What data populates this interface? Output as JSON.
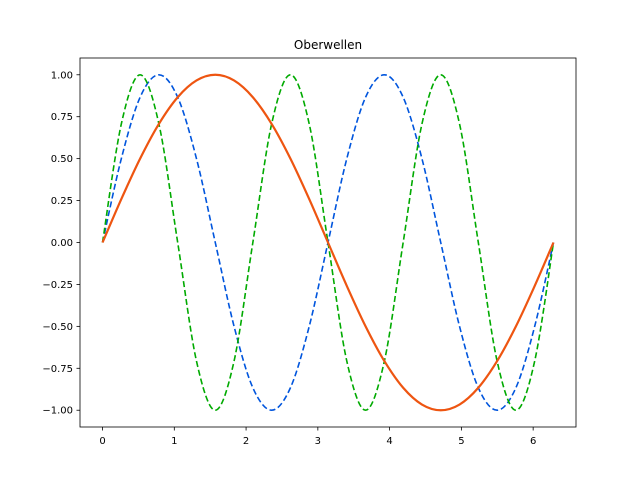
{
  "chart_data": {
    "type": "line",
    "title": "Oberwellen",
    "xlabel": "",
    "ylabel": "",
    "xlim": [
      -0.314,
      6.597
    ],
    "ylim": [
      -1.1,
      1.1
    ],
    "grid": false,
    "x_ticks": [
      {
        "value": 0,
        "label": "0"
      },
      {
        "value": 1,
        "label": "1"
      },
      {
        "value": 2,
        "label": "2"
      },
      {
        "value": 3,
        "label": "3"
      },
      {
        "value": 4,
        "label": "4"
      },
      {
        "value": 5,
        "label": "5"
      },
      {
        "value": 6,
        "label": "6"
      }
    ],
    "y_ticks": [
      {
        "value": -1.0,
        "label": "−1.00"
      },
      {
        "value": -0.75,
        "label": "−0.75"
      },
      {
        "value": -0.5,
        "label": "−0.50"
      },
      {
        "value": -0.25,
        "label": "−0.25"
      },
      {
        "value": 0.0,
        "label": "0.00"
      },
      {
        "value": 0.25,
        "label": "0.25"
      },
      {
        "value": 0.5,
        "label": "0.50"
      },
      {
        "value": 0.75,
        "label": "0.75"
      },
      {
        "value": 1.0,
        "label": "1.00"
      }
    ],
    "series": [
      {
        "color": "#0055dd",
        "line_style": "dashed",
        "x": [
          0,
          0.2618,
          0.5236,
          0.7854,
          1.0472,
          1.309,
          1.5708,
          1.8326,
          2.0944,
          2.3562,
          2.618,
          2.8798,
          3.1416,
          3.4034,
          3.6652,
          3.927,
          4.1888,
          4.4506,
          4.7124,
          4.9742,
          5.236,
          5.4978,
          5.7596,
          6.0214,
          6.2832
        ],
        "y": [
          0,
          0.5,
          0.866,
          1.0,
          0.866,
          0.5,
          0,
          -0.5,
          -0.866,
          -1.0,
          -0.866,
          -0.5,
          0,
          0.5,
          0.866,
          1.0,
          0.866,
          0.5,
          0,
          -0.5,
          -0.866,
          -1.0,
          -0.866,
          -0.5,
          0
        ]
      },
      {
        "color": "#00aa00",
        "line_style": "dashed",
        "x": [
          0,
          0.2618,
          0.5236,
          0.7854,
          1.0472,
          1.309,
          1.5708,
          1.8326,
          2.0944,
          2.3562,
          2.618,
          2.8798,
          3.1416,
          3.4034,
          3.6652,
          3.927,
          4.1888,
          4.4506,
          4.7124,
          4.9742,
          5.236,
          5.4978,
          5.7596,
          6.0214,
          6.2832
        ],
        "y": [
          0,
          0.7071,
          1.0,
          0.7071,
          0,
          -0.7071,
          -1.0,
          -0.7071,
          0,
          0.7071,
          1.0,
          0.7071,
          0,
          -0.7071,
          -1.0,
          -0.7071,
          0,
          0.7071,
          1.0,
          0.7071,
          0,
          -0.7071,
          -1.0,
          -0.7071,
          0
        ]
      },
      {
        "color": "#ee5511",
        "line_style": "solid",
        "x": [
          0,
          0.2618,
          0.5236,
          0.7854,
          1.0472,
          1.309,
          1.5708,
          1.8326,
          2.0944,
          2.3562,
          2.618,
          2.8798,
          3.1416,
          3.4034,
          3.6652,
          3.927,
          4.1888,
          4.4506,
          4.7124,
          4.9742,
          5.236,
          5.4978,
          5.7596,
          6.0214,
          6.2832
        ],
        "y": [
          0,
          0.2588,
          0.5,
          0.7071,
          0.866,
          0.9659,
          1.0,
          0.9659,
          0.866,
          0.7071,
          0.5,
          0.2588,
          0,
          -0.2588,
          -0.5,
          -0.7071,
          -0.866,
          -0.9659,
          -1.0,
          -0.9659,
          -0.866,
          -0.7071,
          -0.5,
          -0.2588,
          0
        ]
      }
    ]
  }
}
